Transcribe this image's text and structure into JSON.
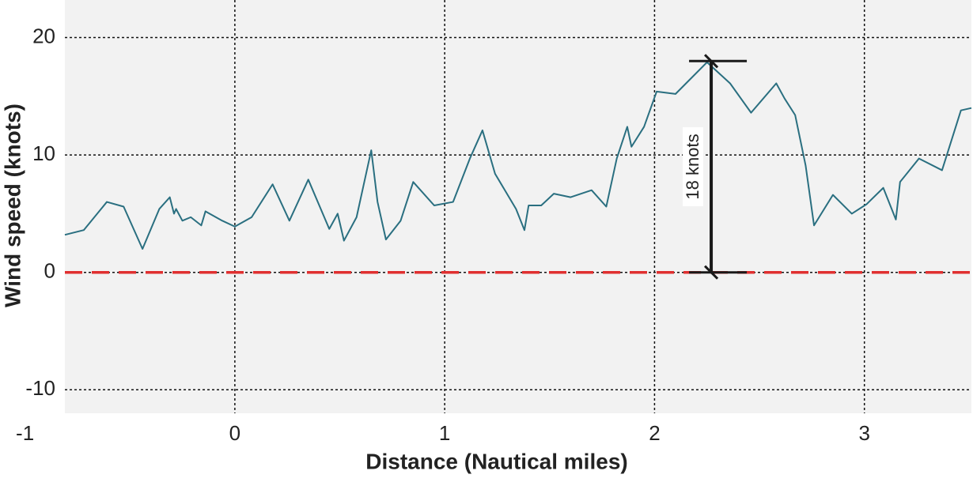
{
  "chart_data": {
    "type": "line",
    "x_label": "Distance (Nautical miles)",
    "y_label": "Wind speed (knots)",
    "x": [
      -0.81,
      -0.72,
      -0.61,
      -0.53,
      -0.44,
      -0.36,
      -0.31,
      -0.29,
      -0.28,
      -0.25,
      -0.21,
      -0.16,
      -0.14,
      -0.06,
      0,
      0.08,
      0.18,
      0.26,
      0.35,
      0.45,
      0.49,
      0.52,
      0.58,
      0.65,
      0.68,
      0.72,
      0.79,
      0.85,
      0.95,
      1.04,
      1.12,
      1.18,
      1.24,
      1.34,
      1.38,
      1.4,
      1.46,
      1.52,
      1.6,
      1.7,
      1.77,
      1.82,
      1.87,
      1.89,
      1.95,
      2.01,
      2.1,
      2.15,
      2.25,
      2.36,
      2.46,
      2.58,
      2.62,
      2.67,
      2.72,
      2.76,
      2.85,
      2.94,
      3.01,
      3.09,
      3.15,
      3.17,
      3.26,
      3.37,
      3.46,
      3.51
    ],
    "series": [
      {
        "name": "Wind speed",
        "color": "#2a6f80",
        "values": [
          3.2,
          3.6,
          6.0,
          5.6,
          2.0,
          5.4,
          6.4,
          5.0,
          5.4,
          4.4,
          4.7,
          4.0,
          5.2,
          4.4,
          3.9,
          4.7,
          7.5,
          4.4,
          7.9,
          3.7,
          5.0,
          2.7,
          4.7,
          10.4,
          6.0,
          2.8,
          4.4,
          7.7,
          5.7,
          6.0,
          9.7,
          12.1,
          8.4,
          5.4,
          3.6,
          5.7,
          5.7,
          6.7,
          6.4,
          7.0,
          5.6,
          9.7,
          12.4,
          10.7,
          12.4,
          15.4,
          15.2,
          16.1,
          17.9,
          16.1,
          13.6,
          16.1,
          14.8,
          13.4,
          9.1,
          4.0,
          6.6,
          5.0,
          5.8,
          7.2,
          4.5,
          7.7,
          9.7,
          8.7,
          13.8,
          14.0
        ]
      }
    ],
    "xlim": [
      -0.81,
      3.51
    ],
    "xticks": [
      -1,
      0,
      1,
      2,
      3
    ],
    "ylim": [
      -12,
      23.2
    ],
    "yticks": [
      -10,
      0,
      10,
      20
    ],
    "grid": true,
    "reference_line": {
      "value": 0,
      "color": "#e03030"
    },
    "annotation": {
      "label": "18 knots",
      "value": 18,
      "x": 2.27
    }
  }
}
